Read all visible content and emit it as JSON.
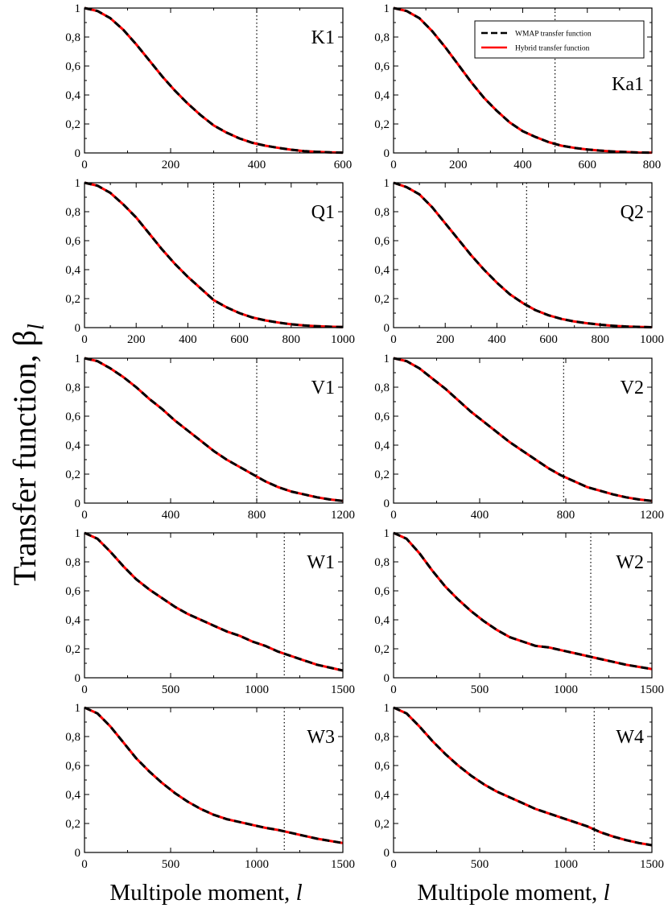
{
  "chart_data": {
    "type": "line",
    "ylabel": "Transfer function, β",
    "ylabel_subscript": "l",
    "xlabel": "Multipole moment,",
    "xlabel_var": "l",
    "legend": {
      "entries": [
        {
          "name": "WMAP transfer function",
          "style": "dashed",
          "color": "#000000"
        },
        {
          "name": "Hybrid transfer function",
          "style": "solid",
          "color": "#ff0000"
        }
      ],
      "placement": "top-right of Ka1 panel"
    },
    "y_ticks": [
      {
        "value": 0,
        "label": "0"
      },
      {
        "value": 0.2,
        "label": "0,2"
      },
      {
        "value": 0.4,
        "label": "0,4"
      },
      {
        "value": 0.6,
        "label": "0,6"
      },
      {
        "value": 0.8,
        "label": "0,8"
      },
      {
        "value": 1,
        "label": "1"
      }
    ],
    "ylim": [
      0,
      1
    ],
    "panels": [
      {
        "label": "K1",
        "xlim": [
          0,
          600
        ],
        "xticks": [
          0,
          200,
          400,
          600
        ],
        "vline": 400,
        "x": [
          0,
          30,
          60,
          90,
          120,
          150,
          180,
          210,
          240,
          270,
          300,
          330,
          360,
          390,
          420,
          450,
          480,
          510,
          540,
          570,
          600
        ],
        "y": [
          1.0,
          0.98,
          0.93,
          0.85,
          0.75,
          0.64,
          0.53,
          0.43,
          0.34,
          0.26,
          0.19,
          0.14,
          0.1,
          0.07,
          0.05,
          0.035,
          0.022,
          0.013,
          0.008,
          0.004,
          0.002
        ]
      },
      {
        "label": "Ka1",
        "xlim": [
          0,
          800
        ],
        "xticks": [
          0,
          200,
          400,
          600,
          800
        ],
        "vline": 500,
        "x": [
          0,
          40,
          80,
          120,
          160,
          200,
          240,
          280,
          320,
          360,
          400,
          440,
          480,
          520,
          560,
          600,
          640,
          680,
          720,
          760,
          800
        ],
        "y": [
          1.0,
          0.98,
          0.93,
          0.84,
          0.73,
          0.61,
          0.49,
          0.38,
          0.29,
          0.21,
          0.15,
          0.11,
          0.075,
          0.05,
          0.035,
          0.024,
          0.016,
          0.01,
          0.006,
          0.003,
          0.002
        ]
      },
      {
        "label": "Q1",
        "xlim": [
          0,
          1000
        ],
        "xticks": [
          0,
          200,
          400,
          600,
          800,
          1000
        ],
        "vline": 500,
        "x": [
          0,
          50,
          100,
          150,
          200,
          250,
          300,
          350,
          400,
          450,
          500,
          550,
          600,
          650,
          700,
          750,
          800,
          850,
          900,
          950,
          1000
        ],
        "y": [
          1.0,
          0.98,
          0.93,
          0.85,
          0.76,
          0.65,
          0.54,
          0.44,
          0.35,
          0.27,
          0.19,
          0.14,
          0.1,
          0.07,
          0.05,
          0.035,
          0.023,
          0.015,
          0.01,
          0.006,
          0.004
        ]
      },
      {
        "label": "Q2",
        "xlim": [
          0,
          1000
        ],
        "xticks": [
          0,
          200,
          400,
          600,
          800,
          1000
        ],
        "vline": 515,
        "x": [
          0,
          50,
          100,
          150,
          200,
          250,
          300,
          350,
          400,
          450,
          500,
          550,
          600,
          650,
          700,
          750,
          800,
          850,
          900,
          950,
          1000
        ],
        "y": [
          1.0,
          0.97,
          0.92,
          0.83,
          0.72,
          0.61,
          0.5,
          0.4,
          0.31,
          0.23,
          0.17,
          0.12,
          0.085,
          0.06,
          0.042,
          0.03,
          0.02,
          0.013,
          0.008,
          0.005,
          0.003
        ]
      },
      {
        "label": "V1",
        "xlim": [
          0,
          1200
        ],
        "xticks": [
          0,
          400,
          800,
          1200
        ],
        "vline": 800,
        "x": [
          0,
          60,
          120,
          180,
          240,
          300,
          360,
          420,
          480,
          540,
          600,
          660,
          720,
          780,
          840,
          900,
          960,
          1020,
          1080,
          1140,
          1200
        ],
        "y": [
          1.0,
          0.98,
          0.93,
          0.87,
          0.8,
          0.72,
          0.65,
          0.57,
          0.5,
          0.43,
          0.36,
          0.3,
          0.25,
          0.2,
          0.15,
          0.11,
          0.08,
          0.06,
          0.04,
          0.025,
          0.015
        ]
      },
      {
        "label": "V2",
        "xlim": [
          0,
          1200
        ],
        "xticks": [
          0,
          400,
          800,
          1200
        ],
        "vline": 790,
        "x": [
          0,
          60,
          120,
          180,
          240,
          300,
          360,
          420,
          480,
          540,
          600,
          660,
          720,
          780,
          840,
          900,
          960,
          1020,
          1080,
          1140,
          1200
        ],
        "y": [
          1.0,
          0.98,
          0.93,
          0.86,
          0.79,
          0.71,
          0.63,
          0.56,
          0.49,
          0.42,
          0.36,
          0.3,
          0.24,
          0.19,
          0.15,
          0.11,
          0.085,
          0.06,
          0.04,
          0.025,
          0.015
        ]
      },
      {
        "label": "W1",
        "xlim": [
          0,
          1500
        ],
        "xticks": [
          0,
          500,
          1000,
          1500
        ],
        "vline": 1160,
        "x": [
          0,
          75,
          150,
          225,
          300,
          375,
          450,
          525,
          600,
          675,
          750,
          825,
          900,
          975,
          1050,
          1125,
          1200,
          1275,
          1350,
          1425,
          1500
        ],
        "y": [
          1.0,
          0.96,
          0.87,
          0.77,
          0.68,
          0.61,
          0.55,
          0.49,
          0.44,
          0.4,
          0.36,
          0.32,
          0.29,
          0.25,
          0.22,
          0.18,
          0.15,
          0.12,
          0.09,
          0.07,
          0.05
        ]
      },
      {
        "label": "W2",
        "xlim": [
          0,
          1500
        ],
        "xticks": [
          0,
          500,
          1000,
          1500
        ],
        "vline": 1145,
        "x": [
          0,
          75,
          150,
          225,
          300,
          375,
          450,
          525,
          600,
          675,
          750,
          825,
          900,
          975,
          1050,
          1125,
          1200,
          1275,
          1350,
          1425,
          1500
        ],
        "y": [
          1.0,
          0.96,
          0.86,
          0.74,
          0.63,
          0.54,
          0.46,
          0.39,
          0.33,
          0.28,
          0.25,
          0.22,
          0.21,
          0.19,
          0.17,
          0.15,
          0.13,
          0.11,
          0.09,
          0.075,
          0.06
        ]
      },
      {
        "label": "W3",
        "xlim": [
          0,
          1500
        ],
        "xticks": [
          0,
          500,
          1000,
          1500
        ],
        "vline": 1160,
        "x": [
          0,
          75,
          150,
          225,
          300,
          375,
          450,
          525,
          600,
          675,
          750,
          825,
          900,
          975,
          1050,
          1125,
          1200,
          1275,
          1350,
          1425,
          1500
        ],
        "y": [
          1.0,
          0.96,
          0.87,
          0.76,
          0.65,
          0.56,
          0.48,
          0.41,
          0.35,
          0.3,
          0.26,
          0.23,
          0.21,
          0.19,
          0.17,
          0.155,
          0.135,
          0.115,
          0.095,
          0.08,
          0.065
        ]
      },
      {
        "label": "W4",
        "xlim": [
          0,
          1500
        ],
        "xticks": [
          0,
          500,
          1000,
          1500
        ],
        "vline": 1165,
        "x": [
          0,
          75,
          150,
          225,
          300,
          375,
          450,
          525,
          600,
          675,
          750,
          825,
          900,
          975,
          1050,
          1125,
          1200,
          1275,
          1350,
          1425,
          1500
        ],
        "y": [
          1.0,
          0.96,
          0.87,
          0.77,
          0.68,
          0.6,
          0.53,
          0.47,
          0.42,
          0.38,
          0.34,
          0.3,
          0.27,
          0.24,
          0.21,
          0.18,
          0.14,
          0.11,
          0.085,
          0.065,
          0.05
        ]
      }
    ]
  }
}
